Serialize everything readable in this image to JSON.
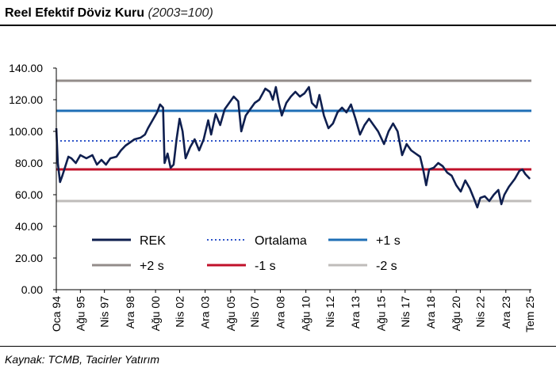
{
  "header": {
    "title": "Reel Efektif Döviz Kuru",
    "subtitle": "(2003=100)"
  },
  "footer": {
    "source": "Kaynak: TCMB, Tacirler Yatırım"
  },
  "colors": {
    "rek": "#0f1f4f",
    "ortalama": "#2f55c9",
    "plus1": "#1f6fb6",
    "plus2": "#938c8a",
    "minus1": "#c0102a",
    "minus2": "#bfbcba"
  },
  "chart_data": {
    "type": "line",
    "title": "Reel Efektif Döviz Kuru",
    "subtitle": "(2003=100)",
    "xlabel": "",
    "ylabel": "",
    "ylim": [
      0,
      140
    ],
    "yticks": [
      "0.00",
      "20.00",
      "40.00",
      "60.00",
      "80.00",
      "100.00",
      "120.00",
      "140.00"
    ],
    "xlim": [
      1994.0,
      2025.6
    ],
    "xticks": [
      {
        "label": "Oca 94",
        "x": 1994.0
      },
      {
        "label": "Ağu 95",
        "x": 1995.6
      },
      {
        "label": "Nis 97",
        "x": 1997.2
      },
      {
        "label": "Ara 98",
        "x": 1998.9
      },
      {
        "label": "Ağu 00",
        "x": 2000.6
      },
      {
        "label": "Nis 02",
        "x": 2002.2
      },
      {
        "label": "Ara 03",
        "x": 2003.9
      },
      {
        "label": "Ağu 05",
        "x": 2005.6
      },
      {
        "label": "Nis 07",
        "x": 2007.2
      },
      {
        "label": "Ara 08",
        "x": 2008.9
      },
      {
        "label": "Ağu 10",
        "x": 2010.6
      },
      {
        "label": "Nis 12",
        "x": 2012.2
      },
      {
        "label": "Ara 13",
        "x": 2013.9
      },
      {
        "label": "Ağu 15",
        "x": 2015.6
      },
      {
        "label": "Nis 17",
        "x": 2017.2
      },
      {
        "label": "Ara 18",
        "x": 2018.9
      },
      {
        "label": "Ağu 20",
        "x": 2020.6
      },
      {
        "label": "Nis 22",
        "x": 2022.2
      },
      {
        "label": "Ara 23",
        "x": 2023.9
      },
      {
        "label": "Tem 25",
        "x": 2025.5
      }
    ],
    "grid": false,
    "legend_position": "lower-left, inside plot",
    "series": [
      {
        "name": "REK",
        "kind": "line",
        "color": "#0f1f4f",
        "points": [
          [
            1994.0,
            102
          ],
          [
            1994.1,
            80
          ],
          [
            1994.25,
            68
          ],
          [
            1994.4,
            72
          ],
          [
            1994.6,
            78
          ],
          [
            1994.8,
            84
          ],
          [
            1995.0,
            83
          ],
          [
            1995.3,
            80
          ],
          [
            1995.6,
            85
          ],
          [
            1996.0,
            83
          ],
          [
            1996.4,
            85
          ],
          [
            1996.7,
            79
          ],
          [
            1997.0,
            82
          ],
          [
            1997.3,
            79
          ],
          [
            1997.6,
            83
          ],
          [
            1998.0,
            84
          ],
          [
            1998.3,
            88
          ],
          [
            1998.6,
            91
          ],
          [
            1998.9,
            93
          ],
          [
            1999.2,
            95
          ],
          [
            1999.6,
            96
          ],
          [
            1999.9,
            98
          ],
          [
            2000.1,
            102
          ],
          [
            2000.4,
            107
          ],
          [
            2000.7,
            112
          ],
          [
            2000.9,
            117
          ],
          [
            2001.1,
            115
          ],
          [
            2001.2,
            80
          ],
          [
            2001.4,
            86
          ],
          [
            2001.6,
            77
          ],
          [
            2001.8,
            79
          ],
          [
            2002.0,
            95
          ],
          [
            2002.2,
            108
          ],
          [
            2002.4,
            100
          ],
          [
            2002.6,
            83
          ],
          [
            2002.9,
            90
          ],
          [
            2003.2,
            95
          ],
          [
            2003.5,
            88
          ],
          [
            2003.8,
            95
          ],
          [
            2004.1,
            107
          ],
          [
            2004.3,
            98
          ],
          [
            2004.6,
            111
          ],
          [
            2004.9,
            104
          ],
          [
            2005.2,
            114
          ],
          [
            2005.5,
            118
          ],
          [
            2005.8,
            122
          ],
          [
            2006.1,
            119
          ],
          [
            2006.3,
            100
          ],
          [
            2006.6,
            110
          ],
          [
            2006.9,
            114
          ],
          [
            2007.2,
            118
          ],
          [
            2007.5,
            120
          ],
          [
            2007.9,
            127
          ],
          [
            2008.2,
            125
          ],
          [
            2008.4,
            120
          ],
          [
            2008.6,
            128
          ],
          [
            2008.8,
            118
          ],
          [
            2009.0,
            110
          ],
          [
            2009.3,
            118
          ],
          [
            2009.6,
            122
          ],
          [
            2009.9,
            125
          ],
          [
            2010.2,
            122
          ],
          [
            2010.5,
            124
          ],
          [
            2010.8,
            128
          ],
          [
            2011.0,
            118
          ],
          [
            2011.3,
            115
          ],
          [
            2011.5,
            123
          ],
          [
            2011.8,
            110
          ],
          [
            2012.1,
            102
          ],
          [
            2012.4,
            105
          ],
          [
            2012.7,
            112
          ],
          [
            2013.0,
            115
          ],
          [
            2013.3,
            112
          ],
          [
            2013.6,
            117
          ],
          [
            2013.9,
            108
          ],
          [
            2014.2,
            98
          ],
          [
            2014.5,
            104
          ],
          [
            2014.8,
            108
          ],
          [
            2015.1,
            104
          ],
          [
            2015.4,
            100
          ],
          [
            2015.8,
            92
          ],
          [
            2016.1,
            100
          ],
          [
            2016.4,
            105
          ],
          [
            2016.7,
            100
          ],
          [
            2017.0,
            85
          ],
          [
            2017.3,
            92
          ],
          [
            2017.6,
            88
          ],
          [
            2017.9,
            86
          ],
          [
            2018.2,
            84
          ],
          [
            2018.4,
            76
          ],
          [
            2018.6,
            66
          ],
          [
            2018.8,
            76
          ],
          [
            2019.1,
            77
          ],
          [
            2019.4,
            80
          ],
          [
            2019.7,
            78
          ],
          [
            2020.0,
            74
          ],
          [
            2020.3,
            72
          ],
          [
            2020.6,
            66
          ],
          [
            2020.9,
            62
          ],
          [
            2021.2,
            69
          ],
          [
            2021.5,
            64
          ],
          [
            2021.8,
            57
          ],
          [
            2022.0,
            52
          ],
          [
            2022.2,
            58
          ],
          [
            2022.5,
            59
          ],
          [
            2022.8,
            56
          ],
          [
            2023.1,
            60
          ],
          [
            2023.4,
            63
          ],
          [
            2023.6,
            54
          ],
          [
            2023.8,
            60
          ],
          [
            2024.1,
            65
          ],
          [
            2024.5,
            70
          ],
          [
            2024.8,
            75
          ],
          [
            2025.0,
            76
          ],
          [
            2025.2,
            73
          ],
          [
            2025.5,
            70
          ]
        ]
      },
      {
        "name": "Ortalama",
        "kind": "hline",
        "y": 94,
        "color": "#2f55c9",
        "dash": "dotted"
      },
      {
        "name": "+1 s",
        "kind": "hline",
        "y": 113,
        "color": "#1f6fb6"
      },
      {
        "name": "+2 s",
        "kind": "hline",
        "y": 132,
        "color": "#938c8a"
      },
      {
        "name": "-1 s",
        "kind": "hline",
        "y": 76,
        "color": "#c0102a"
      },
      {
        "name": "-2 s",
        "kind": "hline",
        "y": 56,
        "color": "#bfbcba"
      }
    ]
  }
}
